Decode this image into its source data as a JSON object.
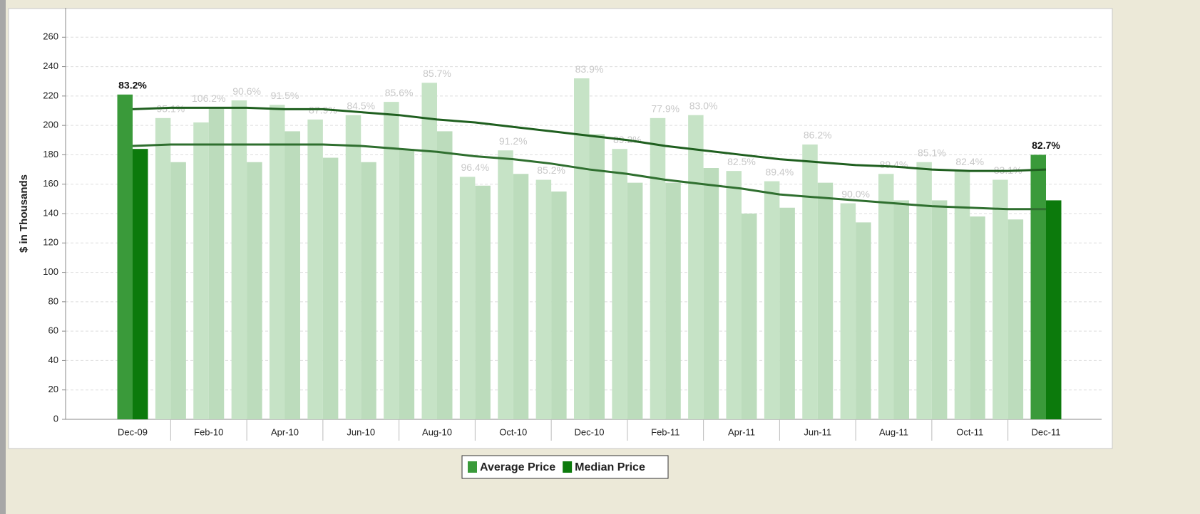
{
  "chart_data": {
    "type": "bar",
    "y_label": "$ in Thousands",
    "categories": [
      "Dec-09",
      null,
      "Feb-10",
      null,
      "Apr-10",
      null,
      "Jun-10",
      null,
      "Aug-10",
      null,
      "Oct-10",
      null,
      "Dec-10",
      null,
      "Feb-11",
      null,
      "Apr-11",
      null,
      "Jun-11",
      null,
      "Aug-11",
      null,
      "Oct-11",
      null,
      "Dec-11"
    ],
    "series": [
      {
        "name": "Average Price",
        "color": "#3a9a3a",
        "faded_color": "#c6e3c6",
        "values": [
          221,
          205,
          202,
          217,
          214,
          204,
          207,
          216,
          229,
          165,
          183,
          163,
          232,
          184,
          205,
          207,
          169,
          162,
          187,
          147,
          167,
          175,
          169,
          163,
          180
        ]
      },
      {
        "name": "Median Price",
        "color": "#0c7a0c",
        "faded_color": "#bcdcbc",
        "values": [
          184,
          175,
          212,
          175,
          196,
          178,
          175,
          184,
          196,
          159,
          167,
          155,
          194,
          161,
          161,
          171,
          140,
          144,
          161,
          134,
          149,
          149,
          138,
          136,
          149
        ]
      }
    ],
    "trend_lines": [
      {
        "color": "#1f5f1f",
        "values": [
          211,
          212,
          212,
          212,
          211,
          211,
          209,
          207,
          204,
          202,
          199,
          196,
          193,
          190,
          186,
          183,
          180,
          177,
          175,
          173,
          172,
          170,
          169,
          169,
          170
        ]
      },
      {
        "color": "#2f6f2f",
        "values": [
          186,
          187,
          187,
          187,
          187,
          187,
          186,
          184,
          182,
          179,
          177,
          174,
          170,
          167,
          163,
          160,
          157,
          153,
          151,
          149,
          147,
          145,
          144,
          143,
          143
        ]
      }
    ],
    "annotations": [
      "83.2%",
      "95.1%",
      "106.2%",
      "90.6%",
      "91.5%",
      "87.9%",
      "84.5%",
      "85.6%",
      "85.7%",
      "96.4%",
      "91.2%",
      "85.2%",
      "83.9%",
      "89.2%",
      "77.9%",
      "83.0%",
      "82.5%",
      "89.4%",
      "86.2%",
      "90.0%",
      "89.4%",
      "85.1%",
      "82.4%",
      "83.1%",
      "82.7%"
    ],
    "highlight": [
      0,
      24
    ],
    "ylim": [
      0,
      280
    ],
    "yticks": [
      0,
      20,
      40,
      60,
      80,
      100,
      120,
      140,
      160,
      180,
      200,
      220,
      240,
      260
    ],
    "grid": true,
    "legend": "bottom"
  }
}
